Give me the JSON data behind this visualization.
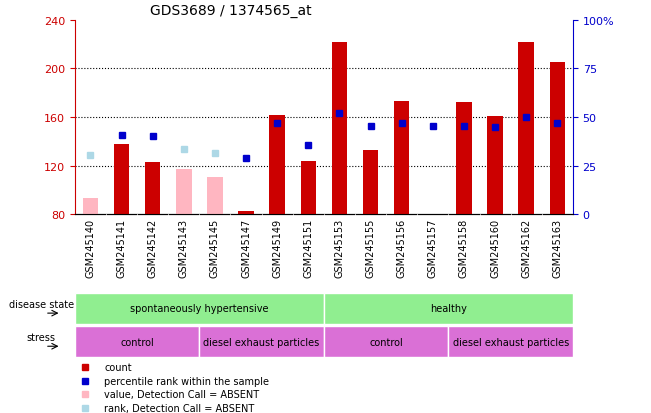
{
  "title": "GDS3689 / 1374565_at",
  "samples": [
    "GSM245140",
    "GSM245141",
    "GSM245142",
    "GSM245143",
    "GSM245145",
    "GSM245147",
    "GSM245149",
    "GSM245151",
    "GSM245153",
    "GSM245155",
    "GSM245156",
    "GSM245157",
    "GSM245158",
    "GSM245160",
    "GSM245162",
    "GSM245163"
  ],
  "count_values": [
    null,
    138,
    123,
    null,
    null,
    83,
    162,
    124,
    222,
    133,
    173,
    null,
    172,
    161,
    222,
    205
  ],
  "count_absent": [
    93,
    null,
    null,
    117,
    111,
    null,
    null,
    null,
    null,
    null,
    null,
    null,
    null,
    null,
    null,
    null
  ],
  "percentile_rank": [
    null,
    145,
    144,
    null,
    null,
    126,
    155,
    137,
    163,
    153,
    155,
    153,
    153,
    152,
    160,
    155
  ],
  "percentile_rank_absent": [
    129,
    null,
    null,
    134,
    130,
    null,
    null,
    null,
    null,
    null,
    null,
    null,
    null,
    null,
    null,
    null
  ],
  "ylim_left": [
    80,
    240
  ],
  "yticks_left": [
    80,
    120,
    160,
    200,
    240
  ],
  "ylim_right": [
    0,
    100
  ],
  "yticks_right": [
    0,
    25,
    50,
    75,
    100
  ],
  "right_labels": [
    "0",
    "25",
    "50",
    "75",
    "100%"
  ],
  "bar_color_present": "#CC0000",
  "bar_color_absent": "#FFB6C1",
  "rank_color_present": "#0000CC",
  "rank_color_absent": "#ADD8E6",
  "bar_width": 0.5,
  "background_color": "#ffffff",
  "axis_label_left_color": "#CC0000",
  "axis_label_right_color": "#0000CC",
  "ds_groups": [
    {
      "label": "spontaneously hypertensive",
      "start": 0,
      "end": 7,
      "color": "#90EE90"
    },
    {
      "label": "healthy",
      "start": 8,
      "end": 15,
      "color": "#90EE90"
    }
  ],
  "stress_groups": [
    {
      "label": "control",
      "start": 0,
      "end": 3,
      "color": "#DA70D6"
    },
    {
      "label": "diesel exhaust particles",
      "start": 4,
      "end": 7,
      "color": "#DA70D6"
    },
    {
      "label": "control",
      "start": 8,
      "end": 11,
      "color": "#DA70D6"
    },
    {
      "label": "diesel exhaust particles",
      "start": 12,
      "end": 15,
      "color": "#DA70D6"
    }
  ],
  "legend_items": [
    {
      "color": "#CC0000",
      "label": "count"
    },
    {
      "color": "#0000CC",
      "label": "percentile rank within the sample"
    },
    {
      "color": "#FFB6C1",
      "label": "value, Detection Call = ABSENT"
    },
    {
      "color": "#ADD8E6",
      "label": "rank, Detection Call = ABSENT"
    }
  ]
}
